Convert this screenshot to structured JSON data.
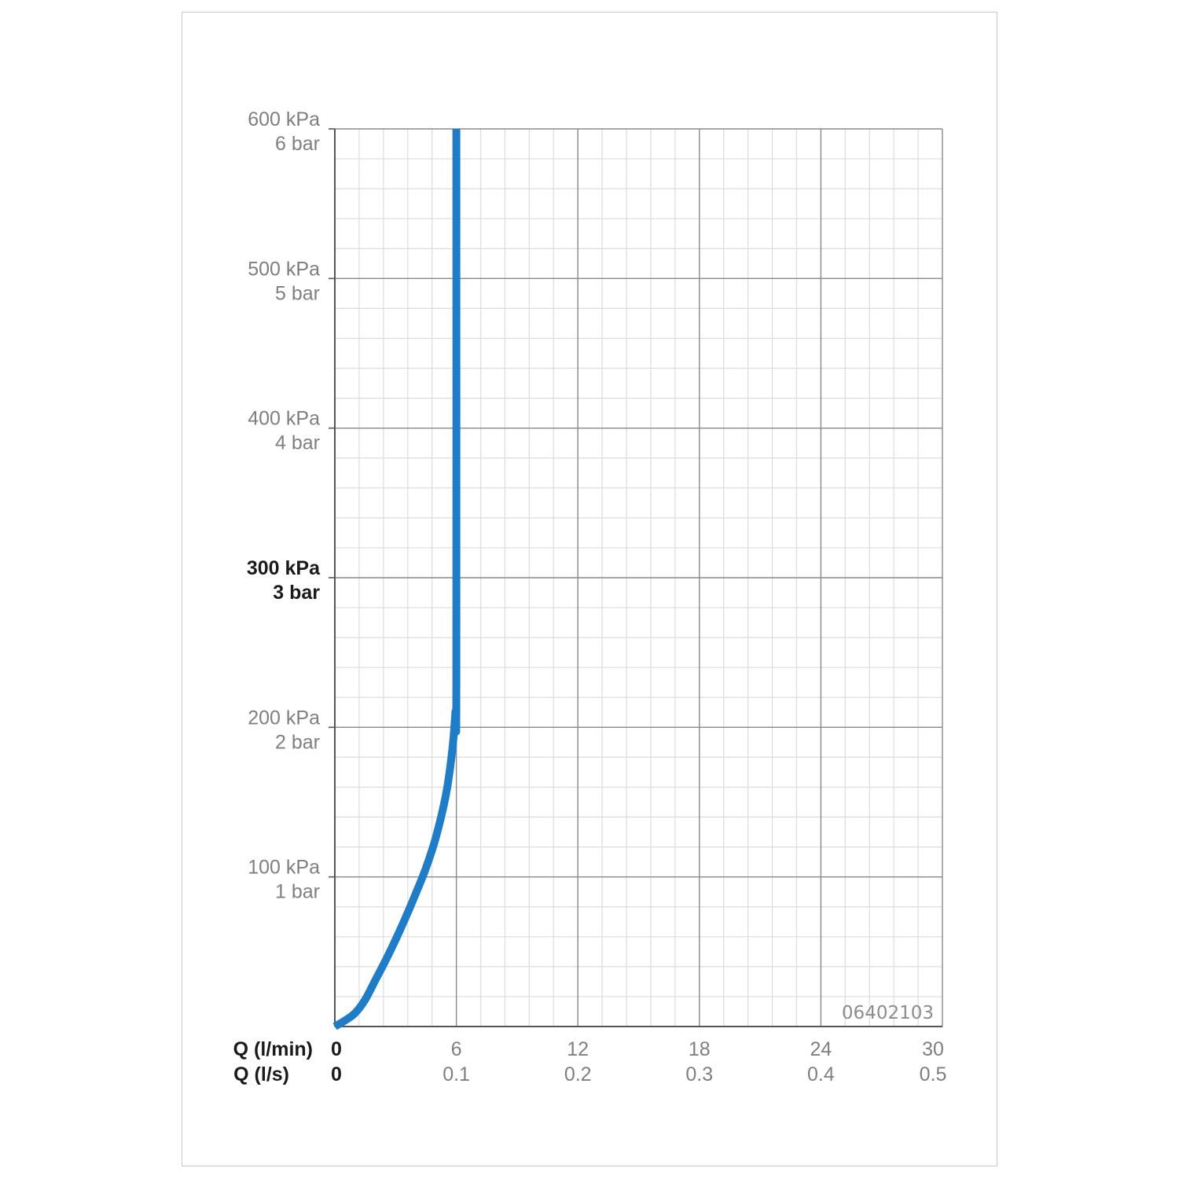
{
  "chart_data": {
    "type": "line",
    "title": "",
    "code": "06402103",
    "x_axis": {
      "titles": [
        "Q (l/min)",
        "Q (l/s)"
      ],
      "primary_ticks": [
        0,
        6,
        12,
        18,
        24,
        30
      ],
      "primary_labels": [
        "0",
        "6",
        "12",
        "18",
        "24",
        "30"
      ],
      "secondary_labels": [
        "0",
        "0.1",
        "0.2",
        "0.3",
        "0.4",
        "0.5"
      ],
      "range": [
        0,
        30
      ],
      "minor_step": 1.2,
      "unit": "l/min"
    },
    "y_axis": {
      "primary_ticks": [
        0,
        100,
        200,
        300,
        400,
        500,
        600
      ],
      "labels_kpa": [
        "",
        "100 kPa",
        "200 kPa",
        "300 kPa",
        "400 kPa",
        "500 kPa",
        "600 kPa"
      ],
      "labels_bar": [
        "",
        "1 bar",
        "2 bar",
        "3 bar",
        "4 bar",
        "5 bar",
        "6 bar"
      ],
      "highlight_tick": 300,
      "range": [
        0,
        600
      ],
      "minor_step": 20,
      "unit": "kPa"
    },
    "grid": true,
    "series": [
      {
        "color": "#1f7dc8",
        "x": [
          0,
          0.5,
          1.0,
          1.5,
          2.0,
          2.5,
          3.0,
          3.5,
          4.0,
          4.5,
          5.0,
          5.5,
          5.8,
          5.95,
          6.0,
          6.0
        ],
        "y": [
          0,
          4,
          9,
          18,
          31,
          44,
          58,
          73,
          89,
          106,
          127,
          156,
          185,
          210,
          230,
          600
        ]
      }
    ]
  }
}
